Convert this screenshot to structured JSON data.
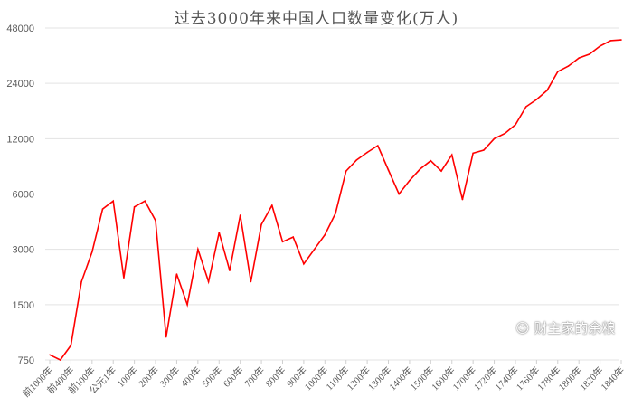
{
  "chart_data": {
    "type": "line",
    "title": "过去3000年来中国人口数量变化(万人)",
    "xlabel": "",
    "ylabel": "",
    "y_scale": "log2",
    "ylim": [
      750,
      48000
    ],
    "y_ticks": [
      750,
      1500,
      3000,
      6000,
      12000,
      24000,
      48000
    ],
    "y_tick_labels": [
      "750",
      "1500",
      "3000",
      "6000",
      "12000",
      "24000",
      "48000"
    ],
    "grid": "horizontal",
    "legend": "none",
    "line_color": "#ff0000",
    "categories": [
      "前1000年",
      "",
      "前400年",
      "",
      "前100年",
      "",
      "公元1年",
      "",
      "100年",
      "",
      "200年",
      "",
      "300年",
      "",
      "400年",
      "",
      "500年",
      "",
      "600年",
      "",
      "700年",
      "",
      "800年",
      "",
      "900年",
      "",
      "1000年",
      "",
      "1100年",
      "",
      "1200年",
      "",
      "1300年",
      "",
      "1400年",
      "",
      "1500年",
      "",
      "1600年",
      "",
      "1700年",
      "",
      "1720年",
      "",
      "1740年",
      "",
      "1760年",
      "",
      "1780年",
      "",
      "1800年",
      "",
      "1820年",
      "",
      "1840年"
    ],
    "values": [
      800,
      750,
      900,
      2000,
      2900,
      4970,
      5500,
      2100,
      5100,
      5500,
      4300,
      1000,
      2200,
      1500,
      3000,
      2000,
      3700,
      2300,
      4600,
      2000,
      4100,
      5200,
      3300,
      3500,
      2500,
      3000,
      3600,
      4700,
      8000,
      9200,
      10100,
      11000,
      8100,
      6000,
      7100,
      8200,
      9100,
      8000,
      9800,
      5600,
      10000,
      10400,
      12000,
      12800,
      14300,
      17900,
      19600,
      22000,
      27800,
      29800,
      33000,
      34600,
      38300,
      41000,
      41400
    ]
  },
  "watermark": {
    "text": "财主家的余粮",
    "icon": "wechat-icon"
  }
}
